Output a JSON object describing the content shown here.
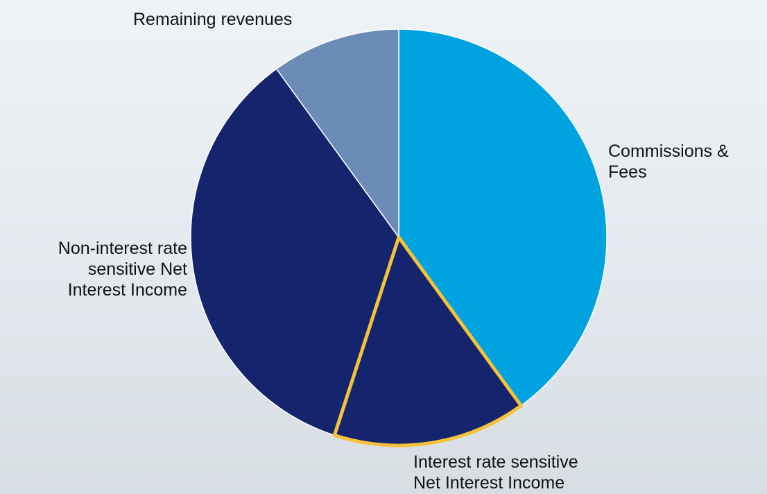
{
  "chart_data": {
    "type": "pie",
    "start_angle_deg": 0,
    "direction": "clockwise",
    "slices": [
      {
        "label": "Commissions & Fees",
        "value": 40,
        "color": "#00a3e0",
        "highlighted": false
      },
      {
        "label": "Interest rate sensitive Net Interest Income",
        "value": 15,
        "color": "#14256e",
        "highlighted": true
      },
      {
        "label": "Non-interest rate sensitive Net Interest Income",
        "value": 35,
        "color": "#14256e",
        "highlighted": false
      },
      {
        "label": "Remaining revenues",
        "value": 10,
        "color": "#6c8cb8",
        "highlighted": false
      }
    ],
    "labels": {
      "commissions": "Commissions &\nFees",
      "interest_sensitive": "Interest rate sensitive\nNet Interest Income",
      "non_interest_sensitive": "Non-interest rate\nsensitive Net \nInterest Income",
      "remaining": "Remaining revenues"
    },
    "highlight_color": "#f5c23a",
    "slice_border_color": "#ffffff"
  }
}
